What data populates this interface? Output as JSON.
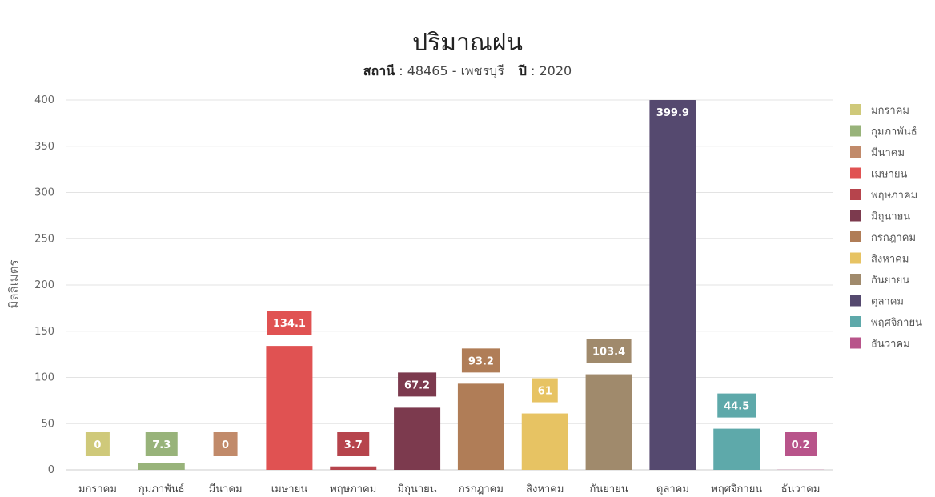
{
  "chart_data": {
    "type": "bar",
    "title": "ปริมาณฝน",
    "subtitle": {
      "station_label": "สถานี",
      "station_value": "48465 - เพชรบุรี",
      "year_label": "ปี",
      "year_value": "2020"
    },
    "ylabel": "มิลลิเมตร",
    "xlabel": "",
    "ylim": [
      0,
      400
    ],
    "yticks": [
      0,
      50,
      100,
      150,
      200,
      250,
      300,
      350,
      400
    ],
    "grid": true,
    "legend_position": "right",
    "categories": [
      "มกราคม",
      "กุมภาพันธ์",
      "มีนาคม",
      "เมษายน",
      "พฤษภาคม",
      "มิถุนายน",
      "กรกฎาคม",
      "สิงหาคม",
      "กันยายน",
      "ตุลาคม",
      "พฤศจิกายน",
      "ธันวาคม"
    ],
    "values": [
      0,
      7.3,
      0,
      134.1,
      3.7,
      67.2,
      93.2,
      61,
      103.4,
      399.9,
      44.5,
      0.2
    ],
    "colors": [
      "#cfc97a",
      "#98b37a",
      "#c18a6a",
      "#e05252",
      "#b6444c",
      "#7c3a4e",
      "#b07d57",
      "#e7c363",
      "#a08a6c",
      "#55496f",
      "#5ea9aa",
      "#b8548a"
    ]
  }
}
